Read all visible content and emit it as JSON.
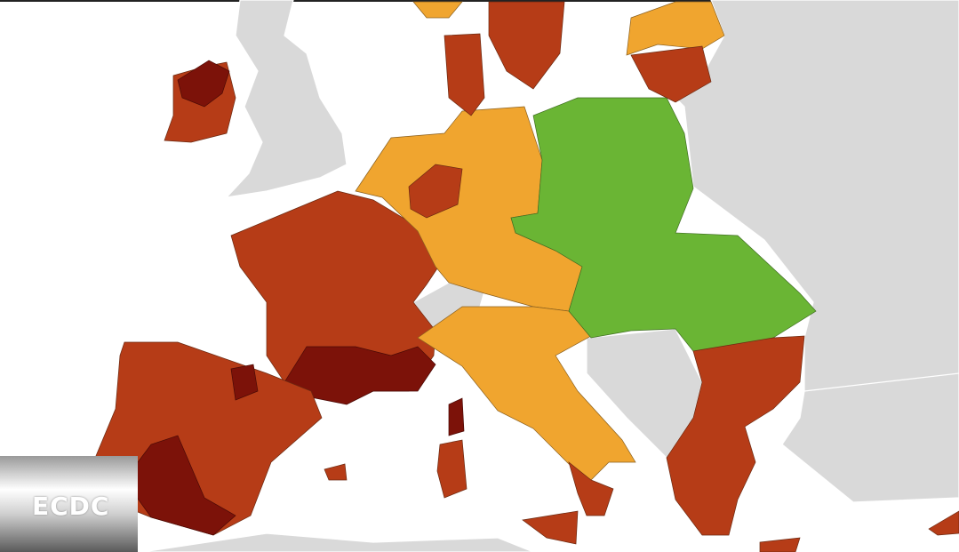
{
  "logo": {
    "text": "ECDC"
  }
}
